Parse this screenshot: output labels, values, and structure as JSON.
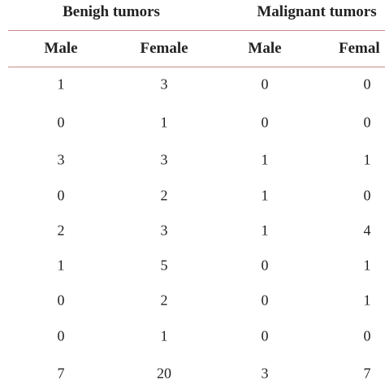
{
  "table": {
    "groups": [
      "Benigh tumors",
      "Malignant tumors"
    ],
    "columns": [
      "Male",
      "Female",
      "Male",
      "Femal"
    ],
    "rows": [
      [
        1,
        3,
        0,
        0
      ],
      [
        0,
        1,
        0,
        0
      ],
      [
        3,
        3,
        1,
        1
      ],
      [
        0,
        2,
        1,
        0
      ],
      [
        2,
        3,
        1,
        4
      ],
      [
        1,
        5,
        0,
        1
      ],
      [
        0,
        2,
        0,
        1
      ],
      [
        0,
        1,
        0,
        0
      ],
      [
        7,
        20,
        3,
        7
      ]
    ]
  }
}
